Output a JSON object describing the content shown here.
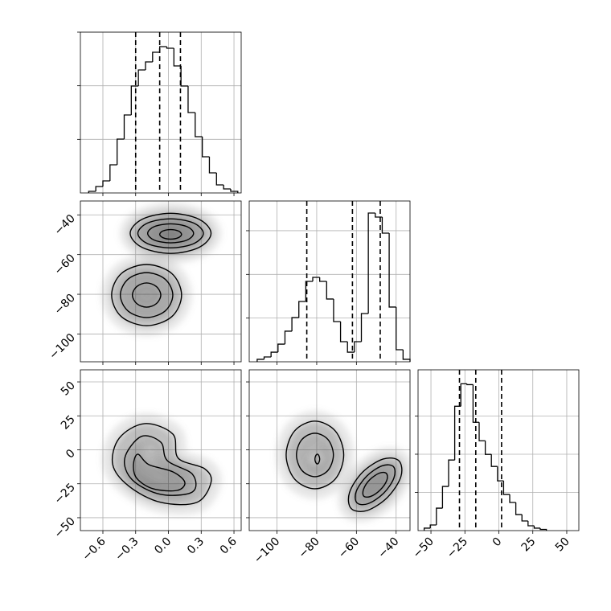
{
  "chart_data": {
    "type": "corner",
    "grid": true,
    "params": [
      {
        "xlim": [
          -0.806,
          0.666
        ],
        "xticks": [
          {
            "value": -0.6,
            "label": "−0.6"
          },
          {
            "value": -0.3,
            "label": "−0.3"
          },
          {
            "value": 0,
            "label": "0.0"
          },
          0.3,
          0.6
        ],
        "hist": {
          "bins": [
            -0.73,
            -0.665,
            -0.6,
            -0.535,
            -0.47,
            -0.405,
            -0.34,
            -0.275,
            -0.21,
            -0.145,
            -0.08,
            -0.015,
            0.05,
            0.115,
            0.18,
            0.245,
            0.31,
            0.375,
            0.44,
            0.505,
            0.57,
            0.635
          ],
          "counts": [
            18,
            72,
            135,
            315,
            603,
            873,
            1197,
            1377,
            1467,
            1575,
            1638,
            1620,
            1422,
            1197,
            900,
            630,
            405,
            225,
            90,
            45,
            18
          ],
          "ylim": [
            0,
            1800
          ],
          "yticks": [
            600,
            1200,
            1800
          ],
          "quantiles": [
            -0.3,
            -0.08,
            0.11
          ]
        }
      },
      {
        "xlim": [
          -114,
          -33
        ],
        "xticks": [
          {
            "value": -100,
            "label": "−100"
          },
          {
            "value": -80,
            "label": "−80"
          },
          {
            "value": -60,
            "label": "−60"
          },
          {
            "value": -40,
            "label": "−40"
          }
        ],
        "hist": {
          "bins": [
            -110,
            -106.5,
            -103,
            -99.5,
            -96,
            -92.5,
            -89,
            -85.5,
            -82,
            -78.5,
            -75,
            -71.5,
            -68,
            -64.5,
            -61,
            -57.5,
            -54,
            -50.5,
            -47,
            -43.5,
            -40,
            -36.5,
            -33
          ],
          "counts": [
            28,
            55,
            110,
            202,
            350,
            506,
            690,
            920,
            966,
            920,
            718,
            460,
            230,
            110,
            230,
            552,
            1702,
            1656,
            1472,
            626,
            138,
            28
          ],
          "ylim": [
            0,
            1840
          ],
          "yticks": [
            500,
            1000,
            1500
          ],
          "quantiles": [
            -85,
            -62,
            -48
          ]
        },
        "joint": [
          {
            "contours": [
              {
                "x": [
                  0.39,
                  0.28,
                  0.02,
                  -0.24,
                  -0.35,
                  -0.24,
                  0.02,
                  0.28
                ],
                "y": [
                  -49.3,
                  -42.2,
                  -39.2,
                  -42.2,
                  -49.3,
                  -56.4,
                  -59.4,
                  -56.4
                ]
              },
              {
                "x": [
                  0.32,
                  0.23,
                  0.02,
                  -0.19,
                  -0.28,
                  -0.19,
                  0.02,
                  0.23
                ],
                "y": [
                  -49.3,
                  -44.1,
                  -42.0,
                  -44.1,
                  -49.3,
                  -54.5,
                  -56.6,
                  -54.5
                ]
              },
              {
                "x": [
                  0.23,
                  0.17,
                  0.02,
                  -0.13,
                  -0.19,
                  -0.13,
                  0.02,
                  0.17
                ],
                "y": [
                  -49.3,
                  -45.9,
                  -44.5,
                  -45.9,
                  -49.3,
                  -52.7,
                  -54.1,
                  -52.7
                ]
              },
              {
                "x": [
                  0.12,
                  0.09,
                  0.02,
                  -0.05,
                  -0.08,
                  -0.05,
                  0.02,
                  0.09
                ],
                "y": [
                  -49.8,
                  -48.1,
                  -47.4,
                  -48.1,
                  -49.8,
                  -51.5,
                  -52.2,
                  -51.5
                ]
              },
              {
                "x": [
                  0.12,
                  0.03,
                  -0.2,
                  -0.43,
                  -0.52,
                  -0.43,
                  -0.2,
                  0.03
                ],
                "y": [
                  -80.4,
                  -69.5,
                  -65.0,
                  -69.5,
                  -80.4,
                  -91.3,
                  -95.8,
                  -91.3
                ]
              },
              {
                "x": [
                  0.04,
                  -0.03,
                  -0.2,
                  -0.37,
                  -0.44,
                  -0.37,
                  -0.2,
                  -0.03
                ],
                "y": [
                  -80.4,
                  -72.4,
                  -69.1,
                  -72.4,
                  -80.4,
                  -88.4,
                  -91.7,
                  -88.4
                ]
              },
              {
                "x": [
                  -0.07,
                  -0.11,
                  -0.2,
                  -0.29,
                  -0.33,
                  -0.29,
                  -0.2,
                  -0.11
                ],
                "y": [
                  -80.4,
                  -76.1,
                  -74.3,
                  -76.1,
                  -80.4,
                  -84.7,
                  -86.5,
                  -84.7
                ]
              }
            ]
          }
        ]
      },
      {
        "xlim": [
          -59.5,
          58.9
        ],
        "xticks": [
          {
            "value": -50,
            "label": "−50"
          },
          {
            "value": -25,
            "label": "−25"
          },
          0,
          25,
          50
        ],
        "hist": {
          "bins": [
            -55,
            -50.5,
            -46,
            -41.5,
            -37,
            -32.5,
            -28,
            -23.5,
            -19,
            -14.5,
            -10,
            -5.5,
            -1,
            3.5,
            8,
            12.5,
            17,
            21.5,
            26,
            30.5,
            35
          ],
          "counts": [
            32,
            74,
            294,
            578,
            924,
            1628,
            1922,
            1911,
            1418,
            1176,
            998,
            840,
            651,
            473,
            368,
            210,
            126,
            63,
            32,
            16
          ],
          "ylim": [
            0,
            2105
          ],
          "yticks": [
            500,
            1000,
            1500
          ],
          "quantiles": [
            -29,
            -17,
            2
          ]
        },
        "joint": [
          {
            "contours": [
              {
                "x": [
                  -0.217,
                  0.04,
                  0.09,
                  0.33,
                  0.39,
                  0.26,
                  -0.07,
                  -0.36,
                  -0.51,
                  -0.45
                ],
                "y": [
                  19.3,
                  11.6,
                  -6.2,
                  -13.9,
                  -23.9,
                  -38.7,
                  -38.7,
                  -26.9,
                  -10.9,
                  8.6
                ]
              },
              {
                "x": [
                  -0.25,
                  -0.07,
                  -0.01,
                  0.22,
                  0.22,
                  -0.07,
                  -0.33,
                  -0.4
                ],
                "y": [
                  9.8,
                  5.6,
                  -8.0,
                  -18.0,
                  -31.0,
                  -32.8,
                  -22.2,
                  -6.2
                ]
              },
              {
                "x": [
                  -0.28,
                  -0.18,
                  0.04,
                  0.15,
                  0.08,
                  -0.14,
                  -0.29,
                  -0.32
                ],
                "y": [
                  -3.2,
                  -10.9,
                  -16.2,
                  -23.9,
                  -29.9,
                  -28.7,
                  -21.0,
                  -10.9
                ]
              }
            ]
          },
          {
            "contours": [
              {
                "x": [
                  -66.4,
                  -70.6,
                  -80.9,
                  -91.2,
                  -95.4,
                  -91.2,
                  -80.9,
                  -70.6
                ],
                "y": [
                  -3.8,
                  13.8,
                  21.1,
                  13.8,
                  -3.8,
                  -21.4,
                  -28.7,
                  -21.4
                ]
              },
              {
                "x": [
                  -71.6,
                  -74.3,
                  -80.9,
                  -87.5,
                  -90.2,
                  -87.5,
                  -80.9,
                  -74.3
                ],
                "y": [
                  -3.8,
                  7.5,
                  12.2,
                  7.5,
                  -3.8,
                  -15.1,
                  -19.8,
                  -15.1
                ]
              },
              {
                "x": [
                  -78.5,
                  -78.9,
                  -79.7,
                  -80.5,
                  -80.9,
                  -80.5,
                  -79.7,
                  -78.9
                ],
                "y": [
                  -6.8,
                  -4.3,
                  -3.2,
                  -4.3,
                  -6.8,
                  -9.3,
                  -10.4,
                  -9.3
                ]
              },
              {
                "x": [
                  -38.6,
                  -37.6,
                  -44.3,
                  -54.6,
                  -62.6,
                  -63.5,
                  -56.9,
                  -46.5
                ],
                "y": [
                  -8.1,
                  -19.8,
                  -34.9,
                  -44.7,
                  -43.3,
                  -31.6,
                  -16.5,
                  -6.8
                ]
              },
              {
                "x": [
                  -41.4,
                  -41.1,
                  -46.3,
                  -54.0,
                  -59.7,
                  -60.1,
                  -54.8,
                  -47.1
                ],
                "y": [
                  -12.3,
                  -20.7,
                  -32.0,
                  -39.6,
                  -39.1,
                  -30.7,
                  -19.4,
                  -11.8
                ]
              },
              {
                "x": [
                  -44.9,
                  -44.7,
                  -48.0,
                  -52.8,
                  -56.3,
                  -56.4,
                  -53.2,
                  -48.3
                ],
                "y": [
                  -17.4,
                  -22.5,
                  -29.5,
                  -34.3,
                  -34.1,
                  -29.0,
                  -21.9,
                  -17.1
                ]
              }
            ]
          }
        ]
      }
    ]
  }
}
